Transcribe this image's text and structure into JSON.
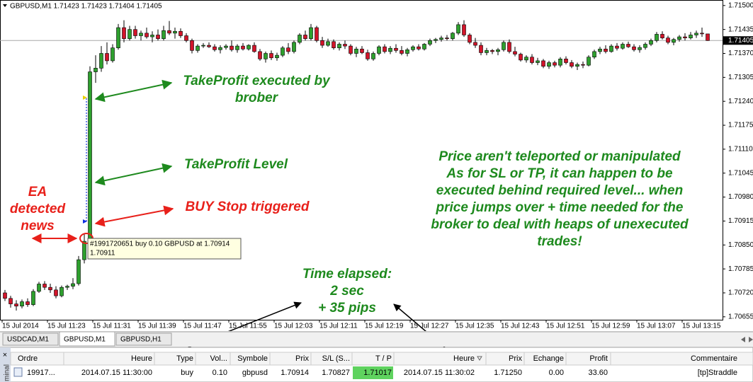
{
  "chart_data": {
    "type": "candlestick",
    "header": "GBPUSD,M1  1.71423 1.71423 1.71404 1.71405",
    "bull_color": "#2ea02e",
    "bear_color": "#d2142a",
    "ylim": [
      1.70647,
      1.71515
    ],
    "yticks": [
      {
        "value": 1.715,
        "label": "1.71500"
      },
      {
        "value": 1.71435,
        "label": "1.71435"
      },
      {
        "value": 1.7137,
        "label": "1.71370"
      },
      {
        "value": 1.71305,
        "label": "1.71305"
      },
      {
        "value": 1.7124,
        "label": "1.71240"
      },
      {
        "value": 1.71175,
        "label": "1.71175"
      },
      {
        "value": 1.7111,
        "label": "1.71110"
      },
      {
        "value": 1.71045,
        "label": "1.71045"
      },
      {
        "value": 1.7098,
        "label": "1.70980"
      },
      {
        "value": 1.70915,
        "label": "1.70915"
      },
      {
        "value": 1.7085,
        "label": "1.70850"
      },
      {
        "value": 1.70785,
        "label": "1.70785"
      },
      {
        "value": 1.7072,
        "label": "1.70720"
      },
      {
        "value": 1.70655,
        "label": "1.70655"
      }
    ],
    "current_price": {
      "value": 1.71405,
      "label": "1.71405"
    },
    "time_labels": [
      "15 Jul 2014",
      "15 Jul 11:23",
      "15 Jul 11:31",
      "15 Jul 11:39",
      "15 Jul 11:47",
      "15 Jul 11:55",
      "15 Jul 12:03",
      "15 Jul 12:11",
      "15 Jul 12:19",
      "15 Jul 12:27",
      "15 Jul 12:35",
      "15 Jul 12:43",
      "15 Jul 12:51",
      "15 Jul 12:59",
      "15 Jul 13:07",
      "15 Jul 13:15"
    ],
    "candles": [
      [
        1.7072,
        1.70728,
        1.70698,
        1.70705
      ],
      [
        1.70705,
        1.70712,
        1.7068,
        1.7069
      ],
      [
        1.7069,
        1.707,
        1.70672,
        1.70684
      ],
      [
        1.70684,
        1.70702,
        1.70678,
        1.70696
      ],
      [
        1.70696,
        1.70705,
        1.70682,
        1.70688
      ],
      [
        1.70688,
        1.7073,
        1.70684,
        1.70724
      ],
      [
        1.70724,
        1.7075,
        1.7072,
        1.70744
      ],
      [
        1.70744,
        1.70752,
        1.70728,
        1.70735
      ],
      [
        1.70735,
        1.70745,
        1.7072,
        1.70728
      ],
      [
        1.70728,
        1.70738,
        1.70705,
        1.70712
      ],
      [
        1.70712,
        1.7074,
        1.70708,
        1.70735
      ],
      [
        1.70735,
        1.70742,
        1.70728,
        1.70738
      ],
      [
        1.70738,
        1.7076,
        1.7073,
        1.70745
      ],
      [
        1.70745,
        1.7082,
        1.7074,
        1.7081
      ],
      [
        1.7081,
        1.7088,
        1.708,
        1.7086
      ],
      [
        1.7086,
        1.71335,
        1.70855,
        1.7132
      ],
      [
        1.7132,
        1.71365,
        1.7129,
        1.7133
      ],
      [
        1.7133,
        1.7139,
        1.7132,
        1.7137
      ],
      [
        1.7137,
        1.714,
        1.7134,
        1.7135
      ],
      [
        1.7135,
        1.71395,
        1.71345,
        1.71385
      ],
      [
        1.71385,
        1.7145,
        1.7138,
        1.7144
      ],
      [
        1.7144,
        1.7146,
        1.714,
        1.7141
      ],
      [
        1.7141,
        1.71445,
        1.71405,
        1.71435
      ],
      [
        1.71435,
        1.71445,
        1.7141,
        1.71418
      ],
      [
        1.71418,
        1.71432,
        1.71405,
        1.71425
      ],
      [
        1.71425,
        1.7144,
        1.7141,
        1.71415
      ],
      [
        1.71415,
        1.7143,
        1.714,
        1.7142
      ],
      [
        1.7142,
        1.71435,
        1.71405,
        1.7141
      ],
      [
        1.7141,
        1.71445,
        1.71405,
        1.71432
      ],
      [
        1.71432,
        1.71458,
        1.7142,
        1.71425
      ],
      [
        1.71425,
        1.7144,
        1.7141,
        1.7143
      ],
      [
        1.7143,
        1.71438,
        1.71412,
        1.71418
      ],
      [
        1.71418,
        1.71425,
        1.714,
        1.71405
      ],
      [
        1.71405,
        1.7141,
        1.7137,
        1.71378
      ],
      [
        1.71378,
        1.71395,
        1.71372,
        1.7139
      ],
      [
        1.7139,
        1.71398,
        1.71385,
        1.71392
      ],
      [
        1.71392,
        1.714,
        1.71385,
        1.71388
      ],
      [
        1.71388,
        1.71395,
        1.71375,
        1.7138
      ],
      [
        1.7138,
        1.71392,
        1.7137,
        1.71386
      ],
      [
        1.71386,
        1.71395,
        1.7138,
        1.7139
      ],
      [
        1.7139,
        1.71405,
        1.71375,
        1.7138
      ],
      [
        1.7138,
        1.71395,
        1.71372,
        1.7139
      ],
      [
        1.7139,
        1.71398,
        1.71378,
        1.71382
      ],
      [
        1.71382,
        1.71395,
        1.71378,
        1.71392
      ],
      [
        1.71392,
        1.714,
        1.71372,
        1.71375
      ],
      [
        1.71375,
        1.71382,
        1.7135,
        1.71355
      ],
      [
        1.71355,
        1.71375,
        1.71345,
        1.7137
      ],
      [
        1.7137,
        1.71378,
        1.71352,
        1.71358
      ],
      [
        1.71358,
        1.71372,
        1.7135,
        1.71365
      ],
      [
        1.71365,
        1.7139,
        1.7136,
        1.71385
      ],
      [
        1.71385,
        1.71398,
        1.71368,
        1.71375
      ],
      [
        1.71375,
        1.71405,
        1.7137,
        1.714
      ],
      [
        1.714,
        1.71425,
        1.71395,
        1.7142
      ],
      [
        1.7142,
        1.71432,
        1.71405,
        1.7141
      ],
      [
        1.7141,
        1.7145,
        1.71405,
        1.7144
      ],
      [
        1.7144,
        1.71445,
        1.714,
        1.71405
      ],
      [
        1.71405,
        1.71415,
        1.71385,
        1.71392
      ],
      [
        1.71392,
        1.7141,
        1.71388,
        1.71402
      ],
      [
        1.71402,
        1.71408,
        1.7138,
        1.71385
      ],
      [
        1.71385,
        1.714,
        1.71378,
        1.71395
      ],
      [
        1.71395,
        1.71405,
        1.71382,
        1.7139
      ],
      [
        1.7139,
        1.71395,
        1.71365,
        1.7137
      ],
      [
        1.7137,
        1.71388,
        1.7136,
        1.71382
      ],
      [
        1.71382,
        1.7139,
        1.71368,
        1.71372
      ],
      [
        1.71372,
        1.7138,
        1.7135,
        1.71355
      ],
      [
        1.71355,
        1.71375,
        1.7135,
        1.7137
      ],
      [
        1.7137,
        1.71392,
        1.71365,
        1.71388
      ],
      [
        1.71388,
        1.71395,
        1.7137,
        1.71375
      ],
      [
        1.71375,
        1.7139,
        1.71368,
        1.71384
      ],
      [
        1.71384,
        1.71395,
        1.71372,
        1.71378
      ],
      [
        1.71378,
        1.7139,
        1.71365,
        1.7137
      ],
      [
        1.7137,
        1.71385,
        1.71362,
        1.7138
      ],
      [
        1.7138,
        1.71392,
        1.71375,
        1.71388
      ],
      [
        1.71388,
        1.71395,
        1.71378,
        1.71382
      ],
      [
        1.71382,
        1.71398,
        1.71378,
        1.71395
      ],
      [
        1.71395,
        1.7141,
        1.7139,
        1.71405
      ],
      [
        1.71405,
        1.71412,
        1.71398,
        1.71408
      ],
      [
        1.71408,
        1.71418,
        1.71402,
        1.71412
      ],
      [
        1.71412,
        1.7142,
        1.71405,
        1.7141
      ],
      [
        1.7141,
        1.71428,
        1.71405,
        1.71425
      ],
      [
        1.71425,
        1.71455,
        1.7142,
        1.71448
      ],
      [
        1.71448,
        1.7146,
        1.71415,
        1.7142
      ],
      [
        1.7142,
        1.71425,
        1.71395,
        1.714
      ],
      [
        1.714,
        1.71412,
        1.71385,
        1.71392
      ],
      [
        1.71392,
        1.714,
        1.71365,
        1.71372
      ],
      [
        1.71372,
        1.71385,
        1.71365,
        1.71378
      ],
      [
        1.71378,
        1.71382,
        1.71368,
        1.71375
      ],
      [
        1.71375,
        1.71385,
        1.71365,
        1.7138
      ],
      [
        1.7138,
        1.71405,
        1.71375,
        1.714
      ],
      [
        1.714,
        1.71408,
        1.7137,
        1.71375
      ],
      [
        1.71375,
        1.71388,
        1.71362,
        1.71368
      ],
      [
        1.71368,
        1.71372,
        1.71348,
        1.71352
      ],
      [
        1.71352,
        1.71365,
        1.71345,
        1.7136
      ],
      [
        1.7136,
        1.71368,
        1.7134,
        1.71345
      ],
      [
        1.71345,
        1.71358,
        1.71338,
        1.7135
      ],
      [
        1.7135,
        1.71355,
        1.7133,
        1.71335
      ],
      [
        1.71335,
        1.7135,
        1.71328,
        1.71345
      ],
      [
        1.71345,
        1.7135,
        1.71332,
        1.71338
      ],
      [
        1.71338,
        1.7136,
        1.71332,
        1.71355
      ],
      [
        1.71355,
        1.71362,
        1.7134,
        1.71345
      ],
      [
        1.71345,
        1.71352,
        1.7133,
        1.71335
      ],
      [
        1.71335,
        1.71345,
        1.71325,
        1.7134
      ],
      [
        1.7134,
        1.71348,
        1.7133,
        1.71338
      ],
      [
        1.71338,
        1.71365,
        1.71335,
        1.7136
      ],
      [
        1.7136,
        1.7138,
        1.71355,
        1.71375
      ],
      [
        1.71375,
        1.71388,
        1.71368,
        1.71382
      ],
      [
        1.71382,
        1.71392,
        1.7137,
        1.71375
      ],
      [
        1.71375,
        1.71395,
        1.71372,
        1.7139
      ],
      [
        1.7139,
        1.71398,
        1.71378,
        1.71384
      ],
      [
        1.71384,
        1.714,
        1.7138,
        1.71395
      ],
      [
        1.71395,
        1.71402,
        1.71385,
        1.71388
      ],
      [
        1.71388,
        1.71395,
        1.71375,
        1.7138
      ],
      [
        1.7138,
        1.71392,
        1.71372,
        1.71386
      ],
      [
        1.71386,
        1.714,
        1.7138,
        1.71395
      ],
      [
        1.71395,
        1.7141,
        1.7139,
        1.71405
      ],
      [
        1.71405,
        1.71428,
        1.714,
        1.71422
      ],
      [
        1.71422,
        1.7143,
        1.71408,
        1.71412
      ],
      [
        1.71412,
        1.71418,
        1.71395,
        1.714
      ],
      [
        1.714,
        1.71412,
        1.71392,
        1.71408
      ],
      [
        1.71408,
        1.7142,
        1.71402,
        1.71415
      ],
      [
        1.71415,
        1.71425,
        1.71405,
        1.71412
      ],
      [
        1.71412,
        1.71428,
        1.71408,
        1.7142
      ],
      [
        1.7142,
        1.71432,
        1.71412,
        1.71425
      ],
      [
        1.71425,
        1.7144,
        1.71415,
        1.71423
      ],
      [
        1.71423,
        1.71423,
        1.71404,
        1.71405
      ]
    ],
    "tooltip": [
      "#1991720651 buy 0.10 GBPUSD at 1.70914",
      "1.70911"
    ],
    "annotations": [
      {
        "lines": [
          "TakeProfit executed by",
          "brober"
        ],
        "color": "#1e8a1e"
      },
      {
        "lines": [
          "TakeProfit Level"
        ],
        "color": "#1e8a1e"
      },
      {
        "lines": [
          "BUY Stop triggered"
        ],
        "color": "#e8201a"
      },
      {
        "lines": [
          "EA",
          "detected",
          "news"
        ],
        "color": "#e8201a"
      },
      {
        "lines": [
          "Price aren't teleported or manipulated",
          "As for SL or TP, it can happen to be",
          "executed behind required level... when",
          "price jumps over + time needed for the",
          "broker to deal with heaps of unexecuted",
          "trades!"
        ],
        "color": "#1e8a1e"
      },
      {
        "lines": [
          "Time elapsed:",
          "2 sec",
          "+ 35 pips"
        ],
        "color": "#1e8a1e"
      }
    ]
  },
  "tabs": [
    "USDCAD,M1",
    "GBPUSD,M1",
    "GBPUSD,H1"
  ],
  "terminal": {
    "side_label": "minal",
    "columns": [
      "Ordre",
      "Heure",
      "Type",
      "Vol...",
      "Symbole",
      "Prix",
      "S/L (S...",
      "T / P",
      "Heure",
      "Prix",
      "Echange",
      "Profit",
      "Commentaire"
    ],
    "rows": [
      [
        "19917...",
        "2014.07.15 11:30:00",
        "buy",
        "0.10",
        "gbpusd",
        "1.70914",
        "1.70827",
        "1.71017",
        "2014.07.15 11:30:02",
        "1.71250",
        "0.00",
        "33.60",
        "[tp]Straddle"
      ]
    ]
  }
}
